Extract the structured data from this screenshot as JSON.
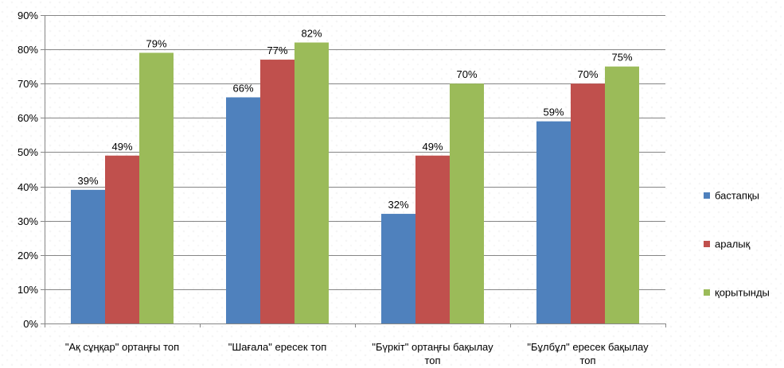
{
  "chart_data": {
    "type": "bar",
    "categories": [
      [
        "\"Ақ сұңқар\" ортаңғы топ"
      ],
      [
        "\"Шағала\" ересек  топ"
      ],
      [
        "\"Бүркіт\" ортаңғы бақылау",
        "топ"
      ],
      [
        "\"Бұлбұл\" ересек бақылау",
        "топ"
      ]
    ],
    "series": [
      {
        "name": "бастапқы",
        "color": "#4F81BD",
        "values": [
          39,
          66,
          32,
          59
        ],
        "labels": [
          "39%",
          "66%",
          "32%",
          "59%"
        ]
      },
      {
        "name": "аралық",
        "color": "#C0504D",
        "values": [
          49,
          77,
          49,
          70
        ],
        "labels": [
          "49%",
          "77%",
          "49%",
          "70%"
        ]
      },
      {
        "name": "қорытынды",
        "color": "#9BBB59",
        "values": [
          79,
          82,
          70,
          75
        ],
        "labels": [
          "79%",
          "82%",
          "70%",
          "75%"
        ]
      }
    ],
    "y_ticks": [
      "0%",
      "10%",
      "20%",
      "30%",
      "40%",
      "50%",
      "60%",
      "70%",
      "80%",
      "90%"
    ],
    "ylim": [
      0,
      90
    ],
    "grid": true,
    "legend_position": "right",
    "gridline_color": "#868686",
    "axis_color": "#868686"
  }
}
